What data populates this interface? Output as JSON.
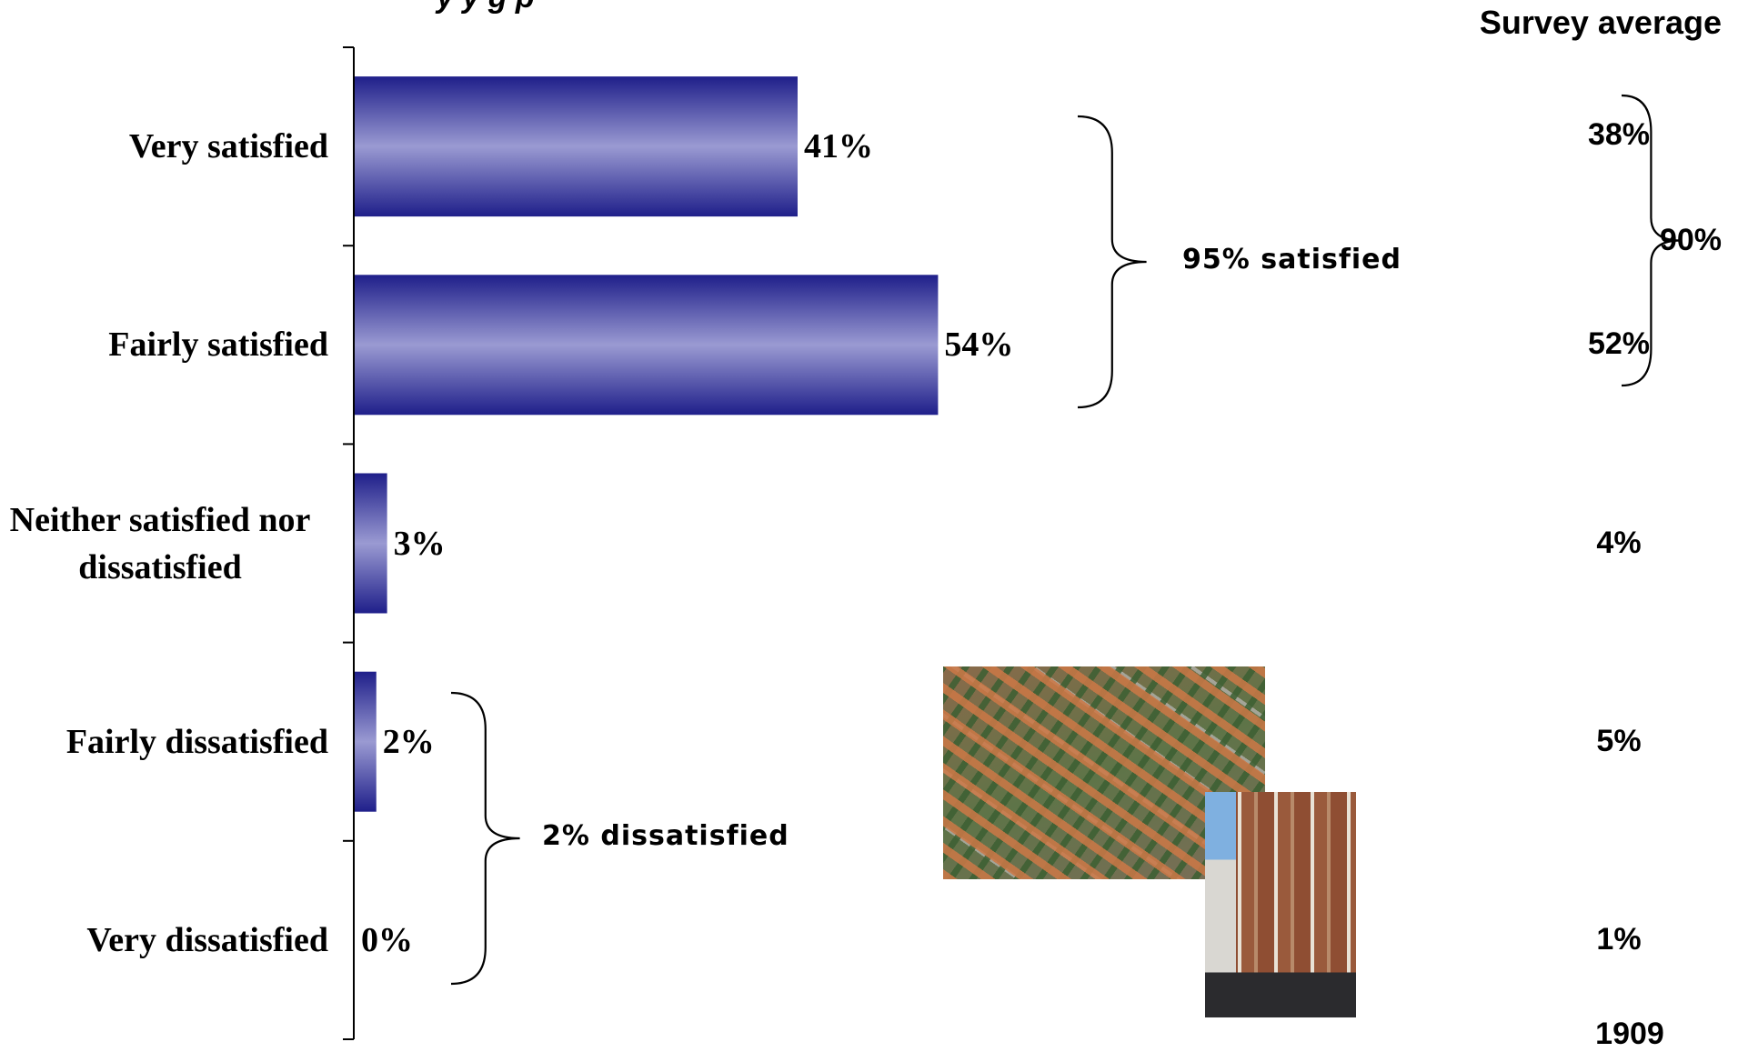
{
  "chart_data": {
    "type": "bar",
    "orientation": "horizontal",
    "title": "",
    "categories": [
      "Very satisfied",
      "Fairly satisfied",
      "Neither satisfied nor dissatisfied",
      "Fairly dissatisfied",
      "Very dissatisfied"
    ],
    "values": [
      41,
      54,
      3,
      2,
      0
    ],
    "value_labels": [
      "41%",
      "54%",
      "3%",
      "2%",
      "0%"
    ],
    "xlim": [
      0,
      100
    ],
    "grid": false,
    "bar_color": "#1f1f8a",
    "bar_highlight_color": "#9a9ad2",
    "groups": [
      {
        "label": "95% satisfied",
        "categories": [
          "Very satisfied",
          "Fairly satisfied"
        ]
      },
      {
        "label": "2% dissatisfied",
        "categories": [
          "Fairly dissatisfied",
          "Very dissatisfied"
        ]
      }
    ],
    "survey_average": {
      "header": "Survey average",
      "values": [
        "38%",
        "52%",
        "4%",
        "5%",
        "1%"
      ],
      "group_total": "90%",
      "footer": "1909"
    }
  },
  "title_fragment": "y      y    g          p"
}
